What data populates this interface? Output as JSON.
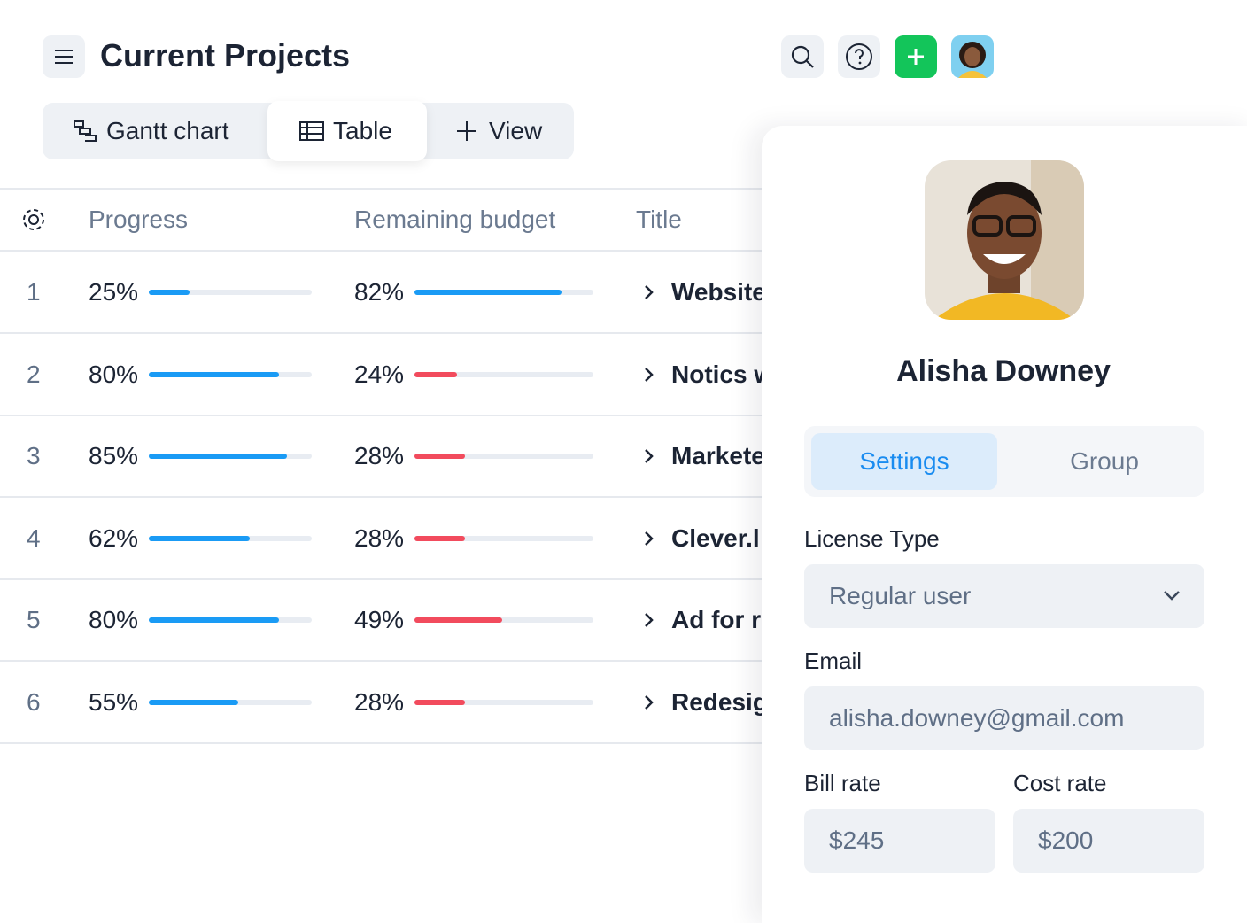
{
  "header": {
    "title": "Current Projects"
  },
  "tabs": [
    "Gantt chart",
    "Table",
    "View"
  ],
  "table": {
    "columns": [
      "Progress",
      "Remaining budget",
      "Title"
    ],
    "range": [
      0,
      100
    ],
    "rows": [
      {
        "index": 1,
        "progress": {
          "value": 25,
          "label": "25%"
        },
        "budget": {
          "value": 82,
          "label": "82%"
        },
        "budget_color": "#1a9bf5",
        "title": "Website"
      },
      {
        "index": 2,
        "progress": {
          "value": 80,
          "label": "80%"
        },
        "budget": {
          "value": 24,
          "label": "24%"
        },
        "budget_color": "#f24b5d",
        "title": "Notics w"
      },
      {
        "index": 3,
        "progress": {
          "value": 85,
          "label": "85%"
        },
        "budget": {
          "value": 28,
          "label": "28%"
        },
        "budget_color": "#f24b5d",
        "title": "Markete"
      },
      {
        "index": 4,
        "progress": {
          "value": 62,
          "label": "62%"
        },
        "budget": {
          "value": 28,
          "label": "28%"
        },
        "budget_color": "#f24b5d",
        "title": "Clever.l"
      },
      {
        "index": 5,
        "progress": {
          "value": 80,
          "label": "80%"
        },
        "budget": {
          "value": 49,
          "label": "49%"
        },
        "budget_color": "#f24b5d",
        "title": "Ad for r"
      },
      {
        "index": 6,
        "progress": {
          "value": 55,
          "label": "55%"
        },
        "budget": {
          "value": 28,
          "label": "28%"
        },
        "budget_color": "#f24b5d",
        "title": "Redesig"
      }
    ]
  },
  "panel": {
    "name": "Alisha Downey",
    "tabs": [
      "Settings",
      "Group"
    ],
    "license_label": "License Type",
    "license_value": "Regular user",
    "email_label": "Email",
    "email_value": "alisha.downey@gmail.com",
    "bill_rate_label": "Bill rate",
    "bill_rate": "$245",
    "cost_rate_label": "Cost rate",
    "cost_rate": "$200"
  }
}
